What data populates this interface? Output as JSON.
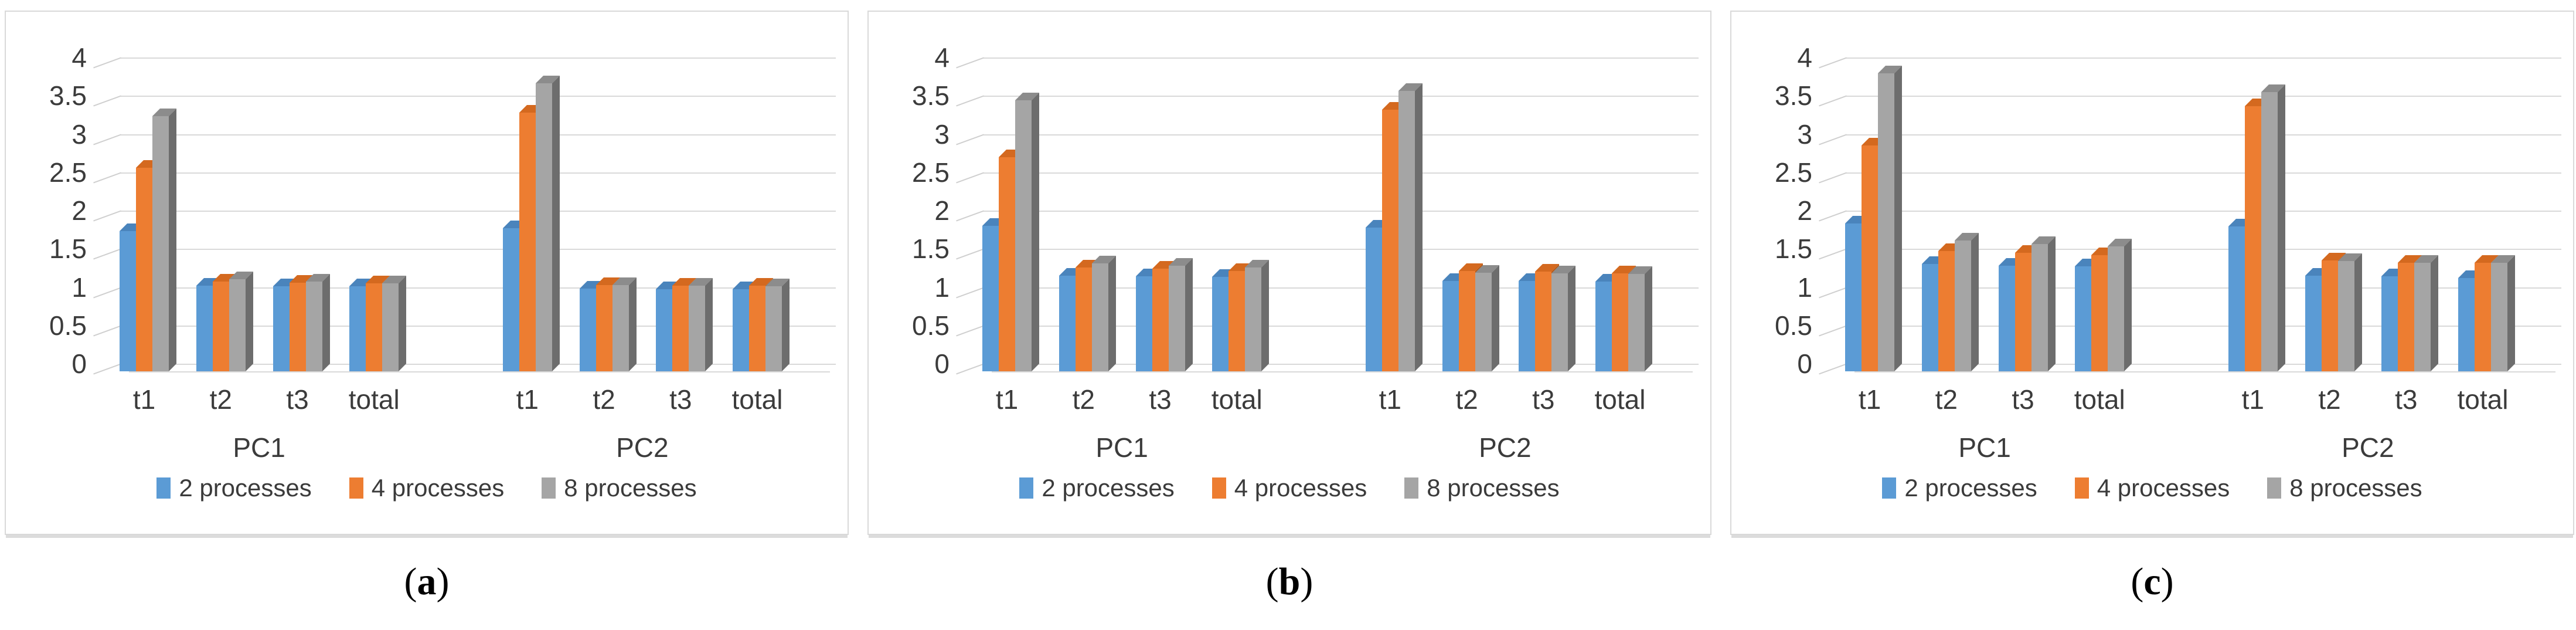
{
  "figure": {
    "background": "#FFFFFF",
    "panel_border_color": "#D9D9D9",
    "gridline_color": "#D9D9D9",
    "axis_text_color": "#3B3B3B",
    "series_colors": [
      "#5B9BD5",
      "#ED7D31",
      "#A5A5A5"
    ],
    "series_top_colors": [
      "#4A84BC",
      "#D4691F",
      "#8C8C8C"
    ],
    "series_side_colors": [
      "#3E6FA3",
      "#B85A17",
      "#6D6D6D"
    ]
  },
  "chart_data": [
    {
      "type": "bar",
      "caption": {
        "open": "(",
        "letter": "a",
        "close": ")"
      },
      "ylim": [
        0,
        4
      ],
      "ytick_step": 0.5,
      "grid": true,
      "legend_position": "bottom",
      "y_tick_labels": [
        "0",
        "0.5",
        "1",
        "1.5",
        "2",
        "2.5",
        "3",
        "3.5",
        "4"
      ],
      "group_labels": [
        "PC1",
        "PC2"
      ],
      "categories": [
        "t1",
        "t2",
        "t3",
        "total",
        "t1",
        "t2",
        "t3",
        "total"
      ],
      "series": [
        {
          "name": "2 processes",
          "values": [
            1.83,
            1.12,
            1.11,
            1.11,
            1.87,
            1.08,
            1.07,
            1.07
          ]
        },
        {
          "name": "4 processes",
          "values": [
            2.66,
            1.17,
            1.16,
            1.15,
            3.38,
            1.13,
            1.12,
            1.12
          ]
        },
        {
          "name": "8 processes",
          "values": [
            3.33,
            1.2,
            1.17,
            1.15,
            3.76,
            1.13,
            1.12,
            1.11
          ]
        }
      ]
    },
    {
      "type": "bar",
      "caption": {
        "open": "(",
        "letter": "b",
        "close": ")"
      },
      "ylim": [
        0,
        4
      ],
      "ytick_step": 0.5,
      "grid": true,
      "legend_position": "bottom",
      "y_tick_labels": [
        "0",
        "0.5",
        "1",
        "1.5",
        "2",
        "2.5",
        "3",
        "3.5",
        "4"
      ],
      "group_labels": [
        "PC1",
        "PC2"
      ],
      "categories": [
        "t1",
        "t2",
        "t3",
        "total",
        "t1",
        "t2",
        "t3",
        "total"
      ],
      "series": [
        {
          "name": "2 processes",
          "values": [
            1.9,
            1.25,
            1.24,
            1.23,
            1.88,
            1.18,
            1.18,
            1.17
          ]
        },
        {
          "name": "4 processes",
          "values": [
            2.8,
            1.36,
            1.34,
            1.31,
            3.42,
            1.31,
            1.3,
            1.28
          ]
        },
        {
          "name": "8 processes",
          "values": [
            3.54,
            1.41,
            1.38,
            1.36,
            3.66,
            1.29,
            1.28,
            1.27
          ]
        }
      ]
    },
    {
      "type": "bar",
      "caption": {
        "open": "(",
        "letter": "c",
        "close": ")"
      },
      "ylim": [
        0,
        4
      ],
      "ytick_step": 0.5,
      "grid": true,
      "legend_position": "bottom",
      "y_tick_labels": [
        "0",
        "0.5",
        "1",
        "1.5",
        "2",
        "2.5",
        "3",
        "3.5",
        "4"
      ],
      "group_labels": [
        "PC1",
        "PC2"
      ],
      "categories": [
        "t1",
        "t2",
        "t3",
        "total",
        "t1",
        "t2",
        "t3",
        "total"
      ],
      "series": [
        {
          "name": "2 processes",
          "values": [
            1.93,
            1.4,
            1.38,
            1.37,
            1.89,
            1.25,
            1.24,
            1.22
          ]
        },
        {
          "name": "4 processes",
          "values": [
            2.95,
            1.57,
            1.55,
            1.52,
            3.46,
            1.45,
            1.42,
            1.42
          ]
        },
        {
          "name": "8 processes",
          "values": [
            3.89,
            1.71,
            1.66,
            1.63,
            3.65,
            1.44,
            1.42,
            1.42
          ]
        }
      ]
    }
  ]
}
